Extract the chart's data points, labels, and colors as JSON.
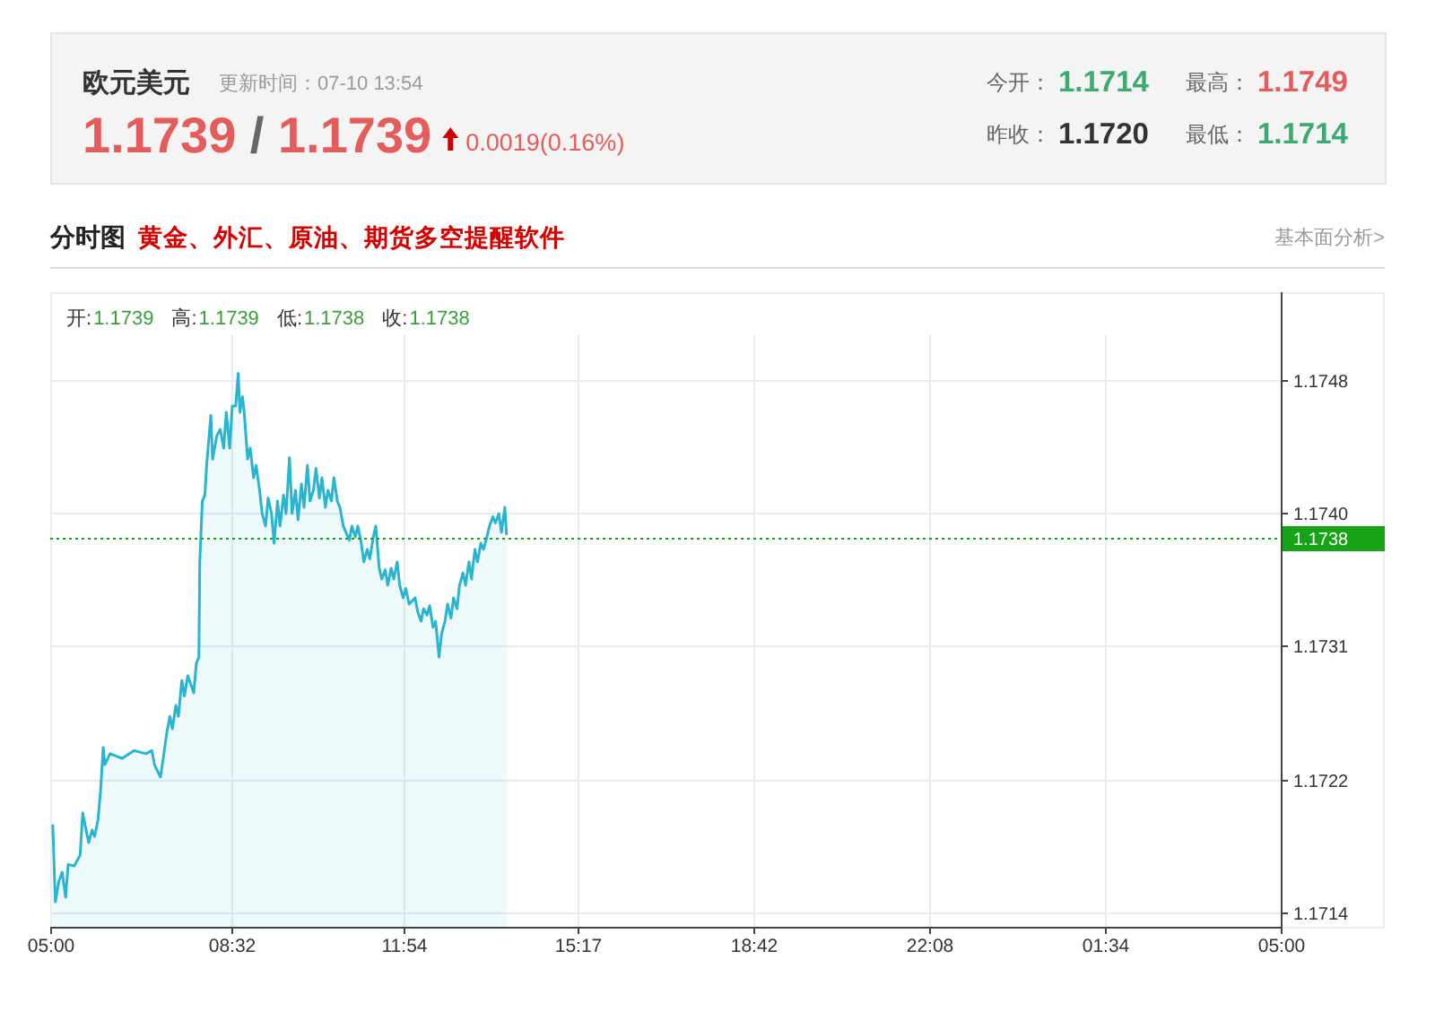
{
  "chart_data": [
    {
      "type": "other",
      "title": "欧元美元",
      "subtitle": "更新时间：07-10 13:54",
      "annotations": [
        "1.1739 / 1.1739",
        "0.0019(0.16%)",
        "今开：",
        "1.1714",
        "最高：",
        "1.1749",
        "昨收：",
        "1.1720",
        "最低：",
        "1.1714"
      ]
    },
    {
      "type": "area",
      "title": "分时图",
      "subtitle": "黄金、外汇、原油、期货多空提醒软件",
      "annotations": [
        "基本面分析>",
        "开:",
        "1.1739",
        "高:",
        "1.1739",
        "低:",
        "1.1738",
        "收:",
        "1.1738"
      ],
      "x": [
        "--07-10T05:03",
        "--07-10T05:06",
        "--07-10T05:10",
        "--07-10T05:14",
        "--07-10T05:18",
        "--07-10T05:21",
        "--07-10T05:28",
        "--07-10T05:35",
        "--07-10T05:38",
        "--07-10T05:42",
        "--07-10T05:45",
        "--07-10T05:49",
        "--07-10T05:52",
        "--07-10T05:56",
        "--07-10T05:59",
        "--07-10T06:02",
        "--07-10T06:04",
        "--07-10T06:10",
        "--07-10T06:24",
        "--07-10T06:38",
        "--07-10T06:52",
        "--07-10T06:59",
        "--07-10T07:02",
        "--07-10T07:09",
        "--07-10T07:13",
        "--07-10T07:16",
        "--07-10T07:20",
        "--07-10T07:23",
        "--07-10T07:27",
        "--07-10T07:30",
        "--07-10T07:34",
        "--07-10T07:37",
        "--07-10T07:41",
        "--07-10T07:48",
        "--07-10T07:51",
        "--07-10T07:54",
        "--07-10T07:55",
        "--07-10T07:58",
        "--07-10T08:01",
        "--07-10T08:03",
        "--07-10T08:08",
        "--07-10T08:10",
        "--07-10T08:15",
        "--07-10T08:19",
        "--07-10T08:23",
        "--07-10T08:26",
        "--07-10T08:30",
        "--07-10T08:33",
        "--07-10T08:37",
        "--07-10T08:40",
        "--07-10T08:42",
        "--07-10T08:45",
        "--07-10T08:47",
        "--07-10T08:51",
        "--07-10T08:54",
        "--07-10T08:58",
        "--07-10T09:01",
        "--07-10T09:05",
        "--07-10T09:08",
        "--07-10T09:12",
        "--07-10T09:15",
        "--07-10T09:19",
        "--07-10T09:22",
        "--07-10T09:26",
        "--07-10T09:29",
        "--07-10T09:33",
        "--07-10T09:36",
        "--07-10T09:40",
        "--07-10T09:43",
        "--07-10T09:47",
        "--07-10T09:50",
        "--07-10T09:54",
        "--07-10T09:57",
        "--07-10T10:01",
        "--07-10T10:04",
        "--07-10T10:08",
        "--07-10T10:11",
        "--07-10T10:15",
        "--07-10T10:18",
        "--07-10T10:22",
        "--07-10T10:25",
        "--07-10T10:29",
        "--07-10T10:32",
        "--07-10T10:36",
        "--07-10T10:39",
        "--07-10T10:43",
        "--07-10T10:46",
        "--07-10T10:50",
        "--07-10T10:53",
        "--07-10T10:57",
        "--07-10T11:00",
        "--07-10T11:04",
        "--07-10T11:07",
        "--07-10T11:11",
        "--07-10T11:14",
        "--07-10T11:18",
        "--07-10T11:21",
        "--07-10T11:25",
        "--07-10T11:28",
        "--07-10T11:32",
        "--07-10T11:35",
        "--07-10T11:39",
        "--07-10T11:42",
        "--07-10T11:46",
        "--07-10T11:49",
        "--07-10T11:53",
        "--07-10T11:56",
        "--07-10T12:00",
        "--07-10T12:07",
        "--07-10T12:10",
        "--07-10T12:14",
        "--07-10T12:17",
        "--07-10T12:21",
        "--07-10T12:24",
        "--07-10T12:28",
        "--07-10T12:31",
        "--07-10T12:35",
        "--07-10T12:38",
        "--07-10T12:42",
        "--07-10T12:45",
        "--07-10T12:49",
        "--07-10T12:52",
        "--07-10T12:56",
        "--07-10T12:59",
        "--07-10T13:03",
        "--07-10T13:06",
        "--07-10T13:10",
        "--07-10T13:13",
        "--07-10T13:17",
        "--07-10T13:20",
        "--07-10T13:24",
        "--07-10T13:27",
        "--07-10T13:31",
        "--07-10T13:34",
        "--07-10T13:38",
        "--07-10T13:41",
        "--07-10T13:45",
        "--07-10T13:48",
        "--07-10T13:52",
        "--07-10T13:54"
      ],
      "series": [
        {
          "color": "#29b4d0",
          "values": [
            1.17196,
            1.17147,
            1.1716,
            1.17166,
            1.1715,
            1.17171,
            1.1717,
            1.17177,
            1.17204,
            1.17193,
            1.17185,
            1.17193,
            1.17189,
            1.172,
            1.17219,
            1.17246,
            1.17235,
            1.17242,
            1.17239,
            1.17244,
            1.17242,
            1.17244,
            1.17235,
            1.17227,
            1.17242,
            1.17254,
            1.17266,
            1.17258,
            1.17273,
            1.17266,
            1.17289,
            1.17279,
            1.17292,
            1.17281,
            1.173,
            1.17304,
            1.17365,
            1.17404,
            1.17408,
            1.17427,
            1.17459,
            1.17431,
            1.17446,
            1.1745,
            1.17438,
            1.17461,
            1.17438,
            1.17465,
            1.17465,
            1.17486,
            1.17461,
            1.17471,
            1.17461,
            1.17431,
            1.17438,
            1.17419,
            1.17427,
            1.17411,
            1.17396,
            1.17388,
            1.17406,
            1.17396,
            1.17377,
            1.17404,
            1.17388,
            1.17408,
            1.17396,
            1.17432,
            1.17396,
            1.17411,
            1.17392,
            1.17415,
            1.174,
            1.17427,
            1.17404,
            1.17411,
            1.17425,
            1.17406,
            1.17419,
            1.174,
            1.17411,
            1.17404,
            1.17419,
            1.17404,
            1.174,
            1.17388,
            1.17384,
            1.17379,
            1.17388,
            1.17381,
            1.17388,
            1.17377,
            1.17365,
            1.17373,
            1.17367,
            1.17381,
            1.17388,
            1.17361,
            1.17354,
            1.1736,
            1.1735,
            1.17361,
            1.17354,
            1.17365,
            1.1735,
            1.17342,
            1.17348,
            1.17338,
            1.17342,
            1.17333,
            1.17327,
            1.17335,
            1.17331,
            1.17337,
            1.17323,
            1.17327,
            1.17304,
            1.17319,
            1.17327,
            1.17338,
            1.17329,
            1.17342,
            1.17335,
            1.1735,
            1.17358,
            1.1735,
            1.17365,
            1.17354,
            1.17373,
            1.17365,
            1.17377,
            1.17373,
            1.17381,
            1.17388,
            1.17394,
            1.1739,
            1.17396,
            1.17384,
            1.174,
            1.17383
          ]
        }
      ],
      "xlim": [
        "--07-10T05:00",
        "--07-11T05:00"
      ],
      "xticks": [
        {
          "value": "--07-10T05:00",
          "label": "05:00"
        },
        {
          "value": "--07-10T08:32",
          "label": "08:32"
        },
        {
          "value": "--07-10T11:54",
          "label": "11:54"
        },
        {
          "value": "--07-10T15:17",
          "label": "15:17"
        },
        {
          "value": "--07-10T18:42",
          "label": "18:42"
        },
        {
          "value": "--07-10T22:08",
          "label": "22:08"
        },
        {
          "value": "--07-11T01:34",
          "label": "01:34"
        },
        {
          "value": "--07-11T05:00",
          "label": "05:00"
        }
      ],
      "ylim": [
        1.17131,
        1.17538
      ],
      "yticks": [
        {
          "value": 1.1714,
          "label": "1.1714"
        },
        {
          "value": 1.17225,
          "label": "1.1722"
        },
        {
          "value": 1.17311,
          "label": "1.1731"
        },
        {
          "value": 1.17397,
          "label": "1.1740"
        },
        {
          "value": 1.17482,
          "label": "1.1748"
        }
      ],
      "grid": true,
      "ref_lines": [
        {
          "axis": "y",
          "value": 1.1738,
          "label": "1.1738",
          "color": "#16a316",
          "line_style": "dotted"
        }
      ]
    }
  ]
}
